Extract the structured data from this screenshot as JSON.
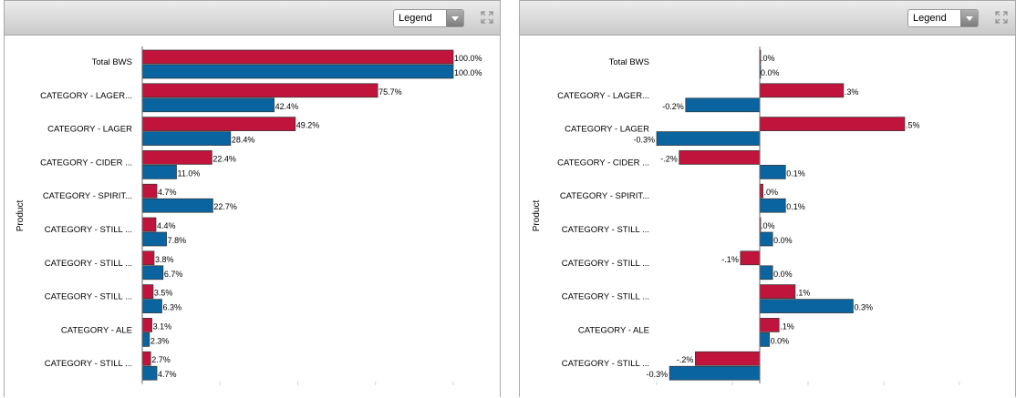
{
  "panels": [
    {
      "legend_label": "Legend",
      "chart_data": {
        "type": "bar",
        "orientation": "horizontal",
        "ylabel": "Product",
        "xlim": [
          0,
          100
        ],
        "categories": [
          "Total BWS",
          "CATEGORY - LAGER...",
          "CATEGORY - LAGER",
          "CATEGORY - CIDER ...",
          "CATEGORY - SPIRIT...",
          "CATEGORY - STILL ...",
          "CATEGORY - STILL ...",
          "CATEGORY - STILL ...",
          "CATEGORY - ALE",
          "CATEGORY - STILL ..."
        ],
        "series": [
          {
            "color": "#c0143c",
            "values": [
              100.0,
              75.7,
              49.2,
              22.4,
              4.7,
              4.4,
              3.8,
              3.5,
              3.1,
              2.7
            ],
            "labels": [
              "100.0%",
              "75.7%",
              "49.2%",
              "22.4%",
              "4.7%",
              "4.4%",
              "3.8%",
              "3.5%",
              "3.1%",
              "2.7%"
            ]
          },
          {
            "color": "#0a64a0",
            "values": [
              100.0,
              42.4,
              28.4,
              11.0,
              22.7,
              7.8,
              6.7,
              6.3,
              2.3,
              4.7
            ],
            "labels": [
              "100.0%",
              "42.4%",
              "28.4%",
              "11.0%",
              "22.7%",
              "7.8%",
              "6.7%",
              "6.3%",
              "2.3%",
              "4.7%"
            ]
          }
        ]
      }
    },
    {
      "legend_label": "Legend",
      "chart_data": {
        "type": "bar",
        "orientation": "horizontal",
        "ylabel": "Product",
        "xlim": [
          -0.32,
          0.62
        ],
        "categories": [
          "Total BWS",
          "CATEGORY - LAGER...",
          "CATEGORY - LAGER",
          "CATEGORY - CIDER ...",
          "CATEGORY - SPIRIT...",
          "CATEGORY - STILL ...",
          "CATEGORY - STILL ...",
          "CATEGORY - STILL ...",
          "CATEGORY - ALE",
          "CATEGORY - STILL ..."
        ],
        "series": [
          {
            "color": "#c0143c",
            "values": [
              0.0,
              0.26,
              0.45,
              -0.25,
              0.01,
              0.0,
              -0.06,
              0.11,
              0.06,
              -0.2
            ],
            "labels": [
              ".0%",
              ".3%",
              ".5%",
              "-.2%",
              ".0%",
              ".0%",
              "-.1%",
              ".1%",
              ".1%",
              "-.2%"
            ]
          },
          {
            "color": "#0a64a0",
            "values": [
              0.0,
              -0.23,
              -0.32,
              0.08,
              0.08,
              0.04,
              0.04,
              0.29,
              0.03,
              -0.28
            ],
            "labels": [
              "0.0%",
              "-0.2%",
              "-0.3%",
              "0.1%",
              "0.1%",
              "0.0%",
              "0.0%",
              "0.3%",
              "0.0%",
              "-0.3%"
            ]
          }
        ]
      }
    }
  ]
}
